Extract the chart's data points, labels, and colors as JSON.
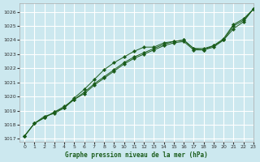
{
  "title": "Graphe pression niveau de la mer (hPa)",
  "bg_color": "#cce8ef",
  "grid_color": "#ffffff",
  "line_color": "#1a5c1a",
  "xlim": [
    -0.5,
    23
  ],
  "ylim": [
    1016.8,
    1026.6
  ],
  "yticks": [
    1017,
    1018,
    1019,
    1020,
    1021,
    1022,
    1023,
    1024,
    1025,
    1026
  ],
  "xticks": [
    0,
    1,
    2,
    3,
    4,
    5,
    6,
    7,
    8,
    9,
    10,
    11,
    12,
    13,
    14,
    15,
    16,
    17,
    18,
    19,
    20,
    21,
    22,
    23
  ],
  "series1_x": [
    0,
    1,
    2,
    3,
    4,
    5,
    6,
    7,
    8,
    9,
    10,
    11,
    12,
    13,
    14,
    15,
    16,
    17,
    18,
    19,
    20,
    21,
    22,
    23
  ],
  "series1_y": [
    1017.2,
    1018.1,
    1018.6,
    1018.8,
    1019.2,
    1019.9,
    1020.5,
    1021.2,
    1021.9,
    1022.4,
    1022.8,
    1023.2,
    1023.5,
    1023.5,
    1023.8,
    1023.9,
    1024.0,
    1023.4,
    1023.3,
    1023.5,
    1024.0,
    1024.8,
    1025.3,
    1026.2
  ],
  "series2_x": [
    0,
    1,
    2,
    3,
    4,
    5,
    6,
    7,
    8,
    9,
    10,
    11,
    12,
    13,
    14,
    15,
    16,
    17,
    18,
    19,
    20,
    21,
    22,
    23
  ],
  "series2_y": [
    1017.2,
    1018.1,
    1018.5,
    1018.9,
    1019.2,
    1019.8,
    1020.3,
    1020.9,
    1021.4,
    1021.9,
    1022.4,
    1022.8,
    1023.1,
    1023.4,
    1023.7,
    1023.9,
    1024.0,
    1023.4,
    1023.4,
    1023.6,
    1024.1,
    1025.1,
    1025.5,
    1026.2
  ],
  "series3_x": [
    0,
    1,
    2,
    3,
    4,
    5,
    6,
    7,
    8,
    9,
    10,
    11,
    12,
    13,
    14,
    15,
    16,
    17,
    18,
    19,
    20,
    21,
    22,
    23
  ],
  "series3_y": [
    1017.2,
    1018.1,
    1018.5,
    1018.9,
    1019.3,
    1019.8,
    1020.2,
    1020.8,
    1021.3,
    1021.8,
    1022.3,
    1022.7,
    1023.0,
    1023.3,
    1023.6,
    1023.8,
    1023.9,
    1023.3,
    1023.3,
    1023.6,
    1024.0,
    1025.0,
    1025.4,
    1026.2
  ]
}
